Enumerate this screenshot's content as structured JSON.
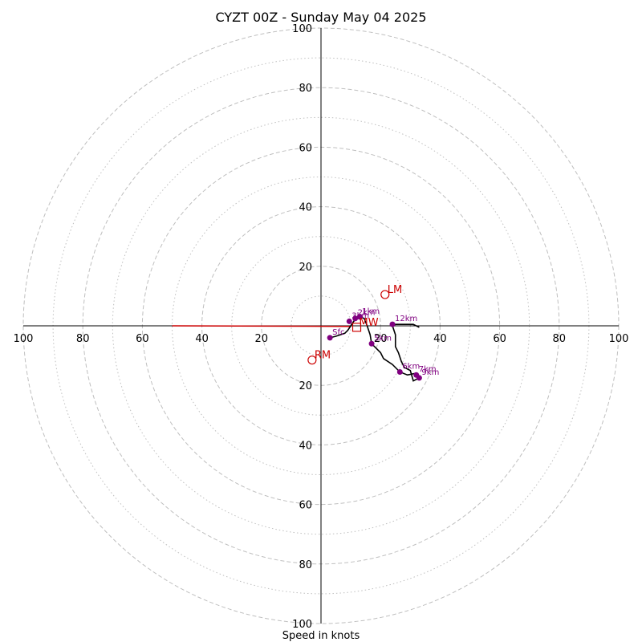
{
  "chart_data": {
    "type": "scatter",
    "title": "CYZT 00Z - Sunday May 04 2025",
    "xlabel": "Speed in knots",
    "xlim": [
      -100,
      100
    ],
    "ylim": [
      -100,
      100
    ],
    "range_rings": {
      "major": [
        20,
        40,
        60,
        80,
        100
      ],
      "minor": [
        10,
        30,
        50,
        70,
        90
      ]
    },
    "x_ticks": [
      "100",
      "80",
      "60",
      "40",
      "20",
      "20",
      "40",
      "60",
      "80",
      "100"
    ],
    "y_ticks": [
      "100",
      "80",
      "60",
      "40",
      "20",
      "20",
      "40",
      "60",
      "80",
      "100"
    ],
    "hodograph_trace": [
      [
        3,
        -4
      ],
      [
        5,
        -3.5
      ],
      [
        8,
        -2.5
      ],
      [
        9,
        -1.5
      ],
      [
        10,
        0
      ],
      [
        11,
        1.5
      ],
      [
        12,
        2.5
      ],
      [
        13,
        3
      ],
      [
        14.5,
        2.5
      ],
      [
        15.5,
        0
      ],
      [
        16.5,
        -3
      ],
      [
        17,
        -6
      ],
      [
        20,
        -9
      ],
      [
        21,
        -11
      ],
      [
        24,
        -13
      ],
      [
        26.5,
        -15.5
      ],
      [
        29,
        -16.5
      ],
      [
        31.5,
        -16
      ],
      [
        33,
        -17.5
      ],
      [
        31,
        -18.5
      ],
      [
        30,
        -15
      ],
      [
        28,
        -14
      ],
      [
        27,
        -12
      ],
      [
        26,
        -9
      ],
      [
        25,
        -7
      ],
      [
        25,
        -3
      ],
      [
        24.5,
        -1.5
      ],
      [
        24,
        0
      ],
      [
        25,
        0.5
      ],
      [
        26.5,
        0.5
      ],
      [
        28,
        0.5
      ],
      [
        29.5,
        0.5
      ],
      [
        31,
        0.5
      ],
      [
        33,
        -0.5
      ]
    ],
    "points": [
      {
        "label": "Sfc",
        "x": 3,
        "y": -4
      },
      {
        "label": "1km",
        "x": 13,
        "y": 3
      },
      {
        "label": "2km",
        "x": 11.5,
        "y": 2.5
      },
      {
        "label": "3km",
        "x": 9.5,
        "y": 1.5
      },
      {
        "label": "5km",
        "x": 17,
        "y": -6
      },
      {
        "label": "6km",
        "x": 26.5,
        "y": -15.5
      },
      {
        "label": "7km",
        "x": 32,
        "y": -16.5
      },
      {
        "label": "9km",
        "x": 33,
        "y": -17.5
      },
      {
        "label": "12km",
        "x": 24,
        "y": 0.5
      }
    ],
    "storm_motion": [
      {
        "label": "LM",
        "x": 21.5,
        "y": 10.5
      },
      {
        "label": "RM",
        "x": -3,
        "y": -11.5
      },
      {
        "label": "MW",
        "x": 12,
        "y": -0.5
      }
    ],
    "shear_vector": [
      [
        -50,
        0
      ],
      [
        10,
        -0.2
      ]
    ],
    "colors": {
      "trace": "#000000",
      "points": "#800080",
      "storm": "#cc0000",
      "grid": "#bfbfbf"
    }
  }
}
